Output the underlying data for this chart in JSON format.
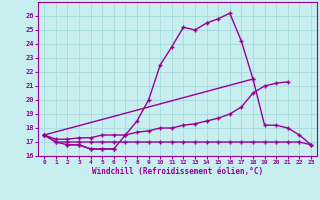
{
  "xlabel": "Windchill (Refroidissement éolien,°C)",
  "x": [
    0,
    1,
    2,
    3,
    4,
    5,
    6,
    7,
    8,
    9,
    10,
    11,
    12,
    13,
    14,
    15,
    16,
    17,
    18,
    19,
    20,
    21,
    22,
    23
  ],
  "line_spike": [
    17.5,
    17.0,
    16.8,
    16.8,
    16.5,
    16.5,
    16.5,
    17.5,
    18.5,
    20.0,
    22.5,
    23.8,
    25.2,
    25.0,
    25.5,
    25.8,
    26.2,
    24.2,
    21.5,
    null,
    null,
    null,
    null,
    null
  ],
  "line_diag": [
    17.5,
    null,
    null,
    null,
    null,
    null,
    null,
    null,
    null,
    null,
    null,
    null,
    null,
    null,
    null,
    null,
    null,
    null,
    21.5,
    18.2,
    18.2,
    18.0,
    17.5,
    16.8
  ],
  "line_slope": [
    17.5,
    17.2,
    17.2,
    17.3,
    17.3,
    17.5,
    17.5,
    17.5,
    17.7,
    17.8,
    18.0,
    18.0,
    18.2,
    18.3,
    18.5,
    18.7,
    19.0,
    19.5,
    20.5,
    21.0,
    21.2,
    21.3,
    null,
    null
  ],
  "line_flat": [
    17.5,
    17.0,
    17.0,
    17.0,
    17.0,
    17.0,
    17.0,
    17.0,
    17.0,
    17.0,
    17.0,
    17.0,
    17.0,
    17.0,
    17.0,
    17.0,
    17.0,
    17.0,
    17.0,
    17.0,
    17.0,
    17.0,
    17.0,
    16.8
  ],
  "line_dip": [
    null,
    null,
    16.8,
    16.8,
    16.5,
    16.5,
    16.5,
    null,
    null,
    null,
    null,
    null,
    null,
    null,
    null,
    null,
    null,
    null,
    null,
    null,
    null,
    null,
    null,
    null
  ],
  "line_color": "#990099",
  "bg_color": "#c8eef0",
  "grid_color": "#aadddd",
  "ylim": [
    16,
    27
  ],
  "xlim": [
    -0.5,
    23.5
  ],
  "yticks": [
    16,
    17,
    18,
    19,
    20,
    21,
    22,
    23,
    24,
    25,
    26
  ],
  "xticks": [
    0,
    1,
    2,
    3,
    4,
    5,
    6,
    7,
    8,
    9,
    10,
    11,
    12,
    13,
    14,
    15,
    16,
    17,
    18,
    19,
    20,
    21,
    22,
    23
  ],
  "marker": "+",
  "linewidth": 1.0,
  "markersize": 3.5
}
